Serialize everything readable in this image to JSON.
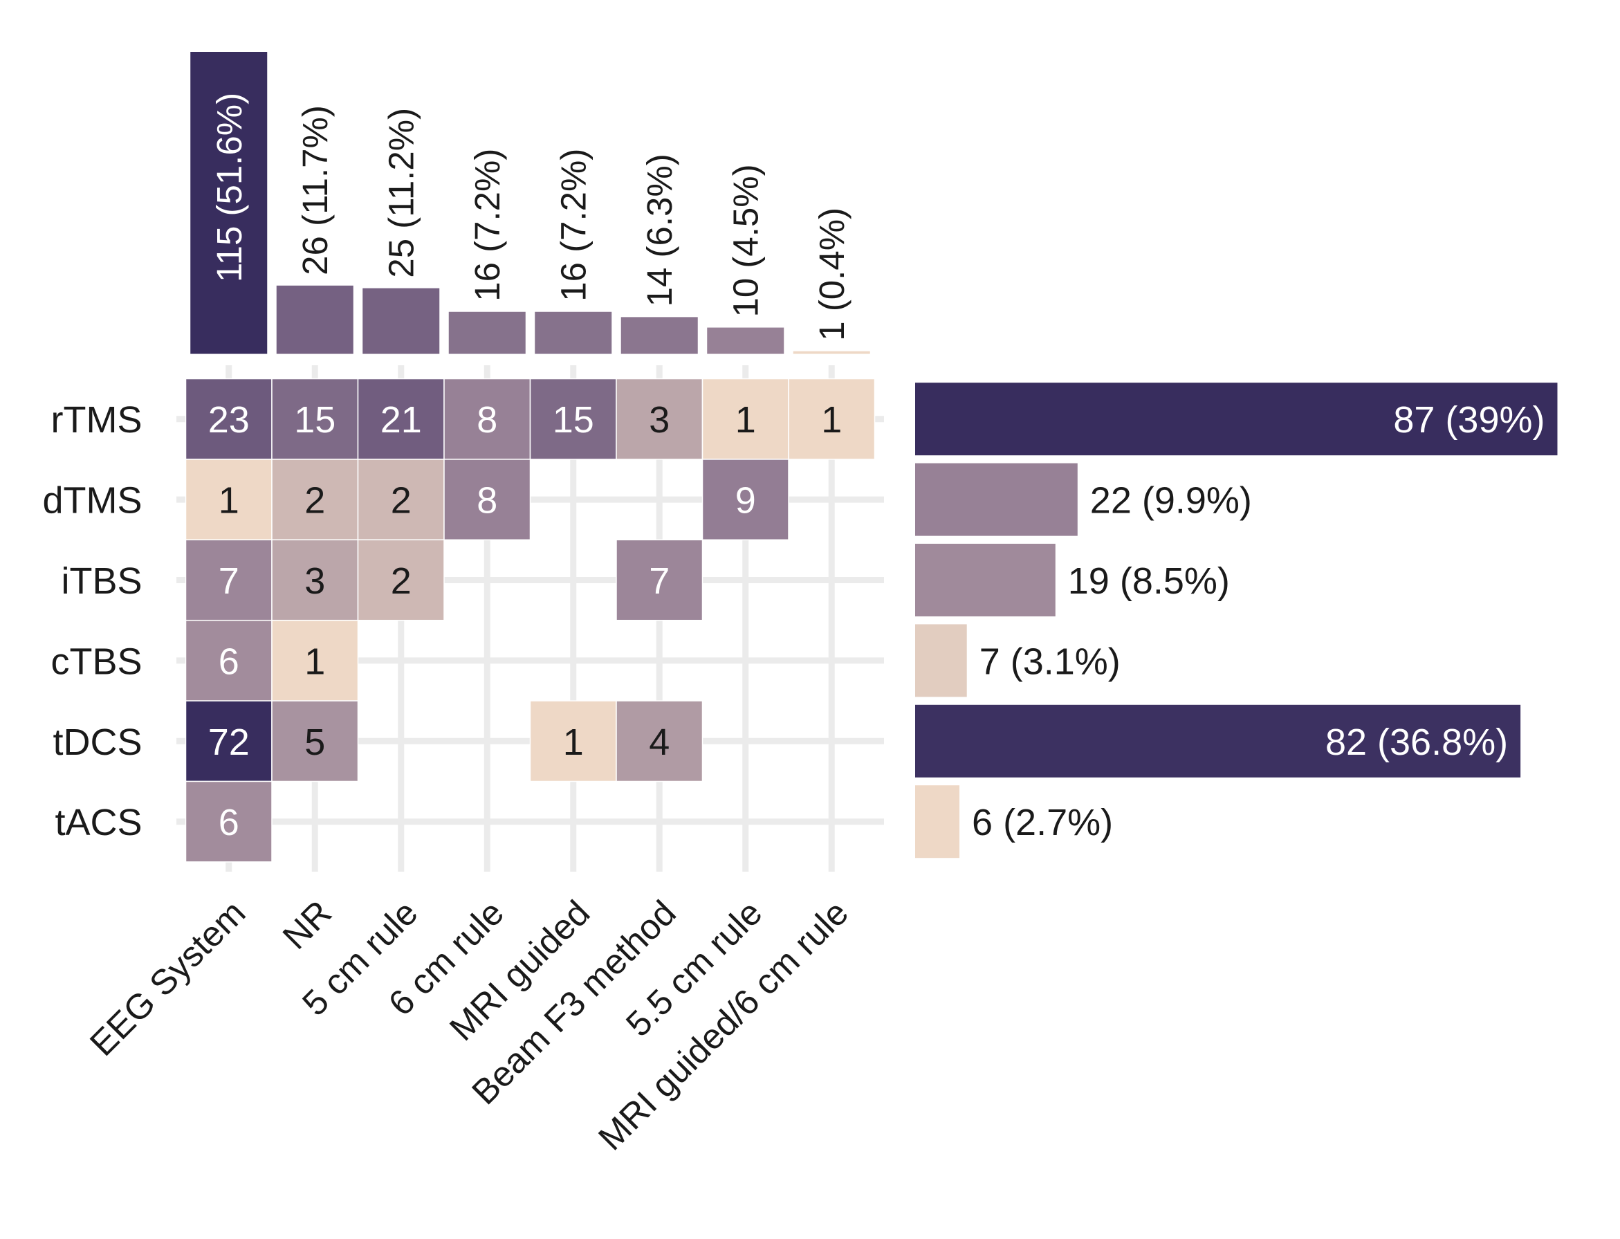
{
  "chart_data": [
    {
      "type": "heatmap",
      "rows": [
        "rTMS",
        "dTMS",
        "iTBS",
        "cTBS",
        "tDCS",
        "tACS"
      ],
      "columns": [
        "EEG System",
        "NR",
        "5 cm rule",
        "6 cm rule",
        "MRI guided",
        "Beam F3 method",
        "5.5 cm rule",
        "MRI guided/6 cm rule"
      ],
      "values": [
        [
          23,
          15,
          21,
          8,
          15,
          3,
          1,
          1
        ],
        [
          1,
          2,
          2,
          8,
          null,
          null,
          9,
          null
        ],
        [
          7,
          3,
          2,
          null,
          null,
          7,
          null,
          null
        ],
        [
          6,
          1,
          null,
          null,
          null,
          null,
          null,
          null
        ],
        [
          72,
          5,
          null,
          null,
          1,
          4,
          null,
          null
        ],
        [
          6,
          null,
          null,
          null,
          null,
          null,
          null,
          null
        ]
      ],
      "grid": true,
      "color_scale": [
        "#eed8c6",
        "#382d5e"
      ]
    },
    {
      "type": "bar",
      "orientation": "vertical",
      "categories": [
        "EEG System",
        "NR",
        "5 cm rule",
        "6 cm rule",
        "MRI guided",
        "Beam F3 method",
        "5.5 cm rule",
        "MRI guided/6 cm rule"
      ],
      "values": [
        115,
        26,
        25,
        16,
        16,
        14,
        10,
        1
      ],
      "labels": [
        "115 (51.6%)",
        "26 (11.7%)",
        "25 (11.2%)",
        "16 (7.2%)",
        "16 (7.2%)",
        "14 (6.3%)",
        "10 (4.5%)",
        "1 (0.4%)"
      ]
    },
    {
      "type": "bar",
      "orientation": "horizontal",
      "categories": [
        "rTMS",
        "dTMS",
        "iTBS",
        "cTBS",
        "tDCS",
        "tACS"
      ],
      "values": [
        87,
        22,
        19,
        7,
        82,
        6
      ],
      "labels": [
        "87 (39%)",
        "22 (9.9%)",
        "19 (8.5%)",
        "7 (3.1%)",
        "82 (36.8%)",
        "6 (2.7%)"
      ]
    }
  ]
}
